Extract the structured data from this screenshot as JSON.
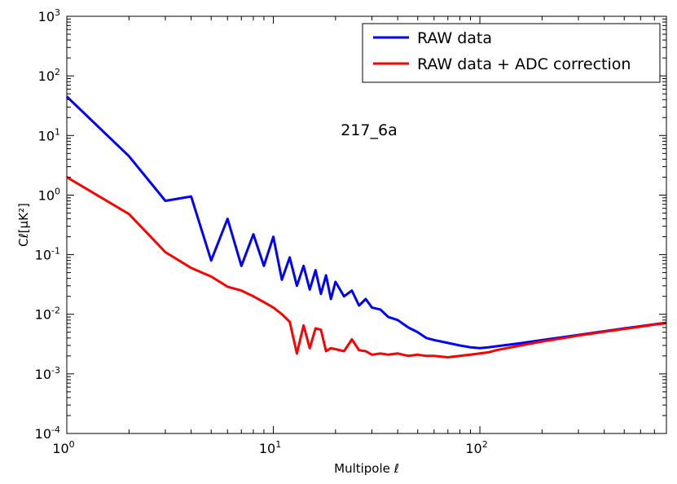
{
  "chart_data": {
    "type": "line",
    "title": "",
    "xlabel": "Multipole ℓ",
    "ylabel": "Cℓ[μK²]",
    "xscale": "log",
    "yscale": "log",
    "xlim": [
      1,
      800
    ],
    "ylim": [
      0.0001,
      1000
    ],
    "grid": false,
    "legend_position": "top-right",
    "annotation": "217_6a",
    "x_ticks": [
      {
        "value": 1,
        "base": "10",
        "exp": "0"
      },
      {
        "value": 10,
        "base": "10",
        "exp": "1"
      },
      {
        "value": 100,
        "base": "10",
        "exp": "2"
      }
    ],
    "y_ticks": [
      {
        "value": 0.0001,
        "base": "10",
        "exp": "-4"
      },
      {
        "value": 0.001,
        "base": "10",
        "exp": "-3"
      },
      {
        "value": 0.01,
        "base": "10",
        "exp": "-2"
      },
      {
        "value": 0.1,
        "base": "10",
        "exp": "-1"
      },
      {
        "value": 1,
        "base": "10",
        "exp": "0"
      },
      {
        "value": 10,
        "base": "10",
        "exp": "1"
      },
      {
        "value": 100,
        "base": "10",
        "exp": "2"
      },
      {
        "value": 1000,
        "base": "10",
        "exp": "3"
      }
    ],
    "series": [
      {
        "name": "RAW data",
        "color": "#0000ff",
        "x": [
          1,
          2,
          3,
          4,
          5,
          6,
          7,
          8,
          9,
          10,
          11,
          12,
          13,
          14,
          15,
          16,
          17,
          18,
          19,
          20,
          22,
          24,
          26,
          28,
          30,
          33,
          36,
          40,
          45,
          50,
          55,
          60,
          70,
          80,
          90,
          100,
          110,
          120,
          150,
          200,
          300,
          400,
          500,
          600,
          700,
          800
        ],
        "y": [
          45,
          4.5,
          0.8,
          0.95,
          0.08,
          0.4,
          0.065,
          0.22,
          0.065,
          0.2,
          0.038,
          0.09,
          0.03,
          0.065,
          0.026,
          0.055,
          0.022,
          0.045,
          0.018,
          0.035,
          0.02,
          0.025,
          0.014,
          0.018,
          0.013,
          0.012,
          0.009,
          0.008,
          0.006,
          0.005,
          0.004,
          0.0037,
          0.0033,
          0.003,
          0.0028,
          0.0027,
          0.0028,
          0.0029,
          0.0032,
          0.0037,
          0.0045,
          0.0052,
          0.0058,
          0.0063,
          0.0068,
          0.0072
        ]
      },
      {
        "name": "RAW data + ADC correction",
        "color": "#ff0000",
        "x": [
          1,
          2,
          3,
          4,
          5,
          6,
          7,
          8,
          9,
          10,
          11,
          12,
          13,
          14,
          15,
          16,
          17,
          18,
          19,
          20,
          22,
          24,
          26,
          28,
          30,
          33,
          36,
          40,
          45,
          50,
          55,
          60,
          70,
          80,
          90,
          100,
          110,
          120,
          150,
          200,
          300,
          400,
          500,
          600,
          700,
          800
        ],
        "y": [
          2.0,
          0.48,
          0.11,
          0.06,
          0.043,
          0.029,
          0.025,
          0.02,
          0.016,
          0.013,
          0.01,
          0.0075,
          0.0022,
          0.0065,
          0.0027,
          0.0058,
          0.0055,
          0.0024,
          0.0027,
          0.0026,
          0.0024,
          0.0038,
          0.0025,
          0.0024,
          0.0021,
          0.0022,
          0.0021,
          0.0022,
          0.002,
          0.0021,
          0.002,
          0.002,
          0.0019,
          0.002,
          0.0021,
          0.0022,
          0.0023,
          0.0025,
          0.0029,
          0.0035,
          0.0044,
          0.0051,
          0.0057,
          0.0062,
          0.0067,
          0.0071
        ]
      }
    ]
  }
}
